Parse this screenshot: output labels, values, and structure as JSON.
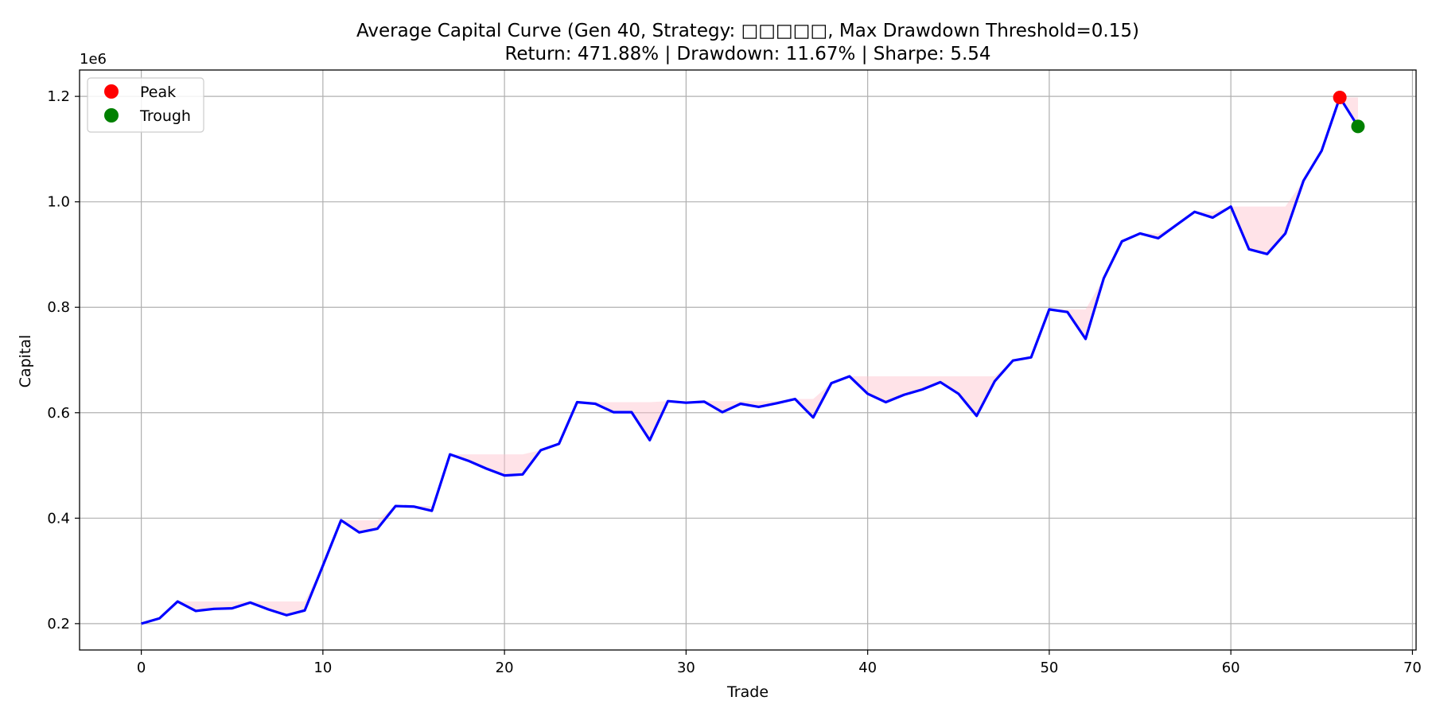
{
  "chart_data": {
    "type": "line",
    "title_line1": "Average Capital Curve (Gen 40, Strategy: □□□□□, Max Drawdown Threshold=0.15)",
    "title_line2": "Return: 471.88% | Drawdown: 11.67% | Sharpe: 5.54",
    "xlabel": "Trade",
    "ylabel": "Capital",
    "y_offset_label": "1e6",
    "xlim": [
      -3.4,
      70.2
    ],
    "ylim": [
      0.15,
      1.25
    ],
    "x_ticks": [
      0,
      10,
      20,
      30,
      40,
      50,
      60,
      70
    ],
    "y_ticks": [
      0.2,
      0.4,
      0.6,
      0.8,
      1.0,
      1.2
    ],
    "y_tick_labels": [
      "0.2",
      "0.4",
      "0.6",
      "0.8",
      "1.0",
      "1.2"
    ],
    "grid": true,
    "legend_position": "top-left",
    "series": [
      {
        "name": "capital",
        "color": "#0000ff",
        "x": [
          0,
          1,
          2,
          3,
          4,
          5,
          6,
          7,
          8,
          9,
          10,
          11,
          12,
          13,
          14,
          15,
          16,
          17,
          18,
          19,
          20,
          21,
          22,
          23,
          24,
          25,
          26,
          27,
          28,
          29,
          30,
          31,
          32,
          33,
          34,
          35,
          36,
          37,
          38,
          39,
          40,
          41,
          42,
          43,
          44,
          45,
          46,
          47,
          48,
          49,
          50,
          51,
          52,
          53,
          54,
          55,
          56,
          57,
          58,
          59,
          60,
          61,
          62,
          63,
          64,
          65,
          66,
          67
        ],
        "y": [
          0.2,
          0.21,
          0.242,
          0.224,
          0.228,
          0.229,
          0.24,
          0.227,
          0.216,
          0.225,
          0.31,
          0.396,
          0.373,
          0.38,
          0.423,
          0.422,
          0.414,
          0.521,
          0.509,
          0.494,
          0.481,
          0.483,
          0.529,
          0.541,
          0.62,
          0.617,
          0.601,
          0.601,
          0.548,
          0.622,
          0.619,
          0.621,
          0.601,
          0.617,
          0.611,
          0.618,
          0.626,
          0.591,
          0.656,
          0.669,
          0.636,
          0.62,
          0.634,
          0.644,
          0.658,
          0.636,
          0.594,
          0.66,
          0.699,
          0.705,
          0.796,
          0.791,
          0.74,
          0.855,
          0.925,
          0.94,
          0.931,
          0.956,
          0.981,
          0.97,
          0.991,
          0.91,
          0.901,
          0.94,
          1.04,
          1.097,
          1.198,
          1.143
        ]
      }
    ],
    "drawdown_fill_color": "#ffc0cb",
    "peak": {
      "label": "Peak",
      "x": 66,
      "y": 1.198,
      "color": "#ff0000"
    },
    "trough": {
      "label": "Trough",
      "x": 67,
      "y": 1.143,
      "color": "#008000"
    }
  }
}
